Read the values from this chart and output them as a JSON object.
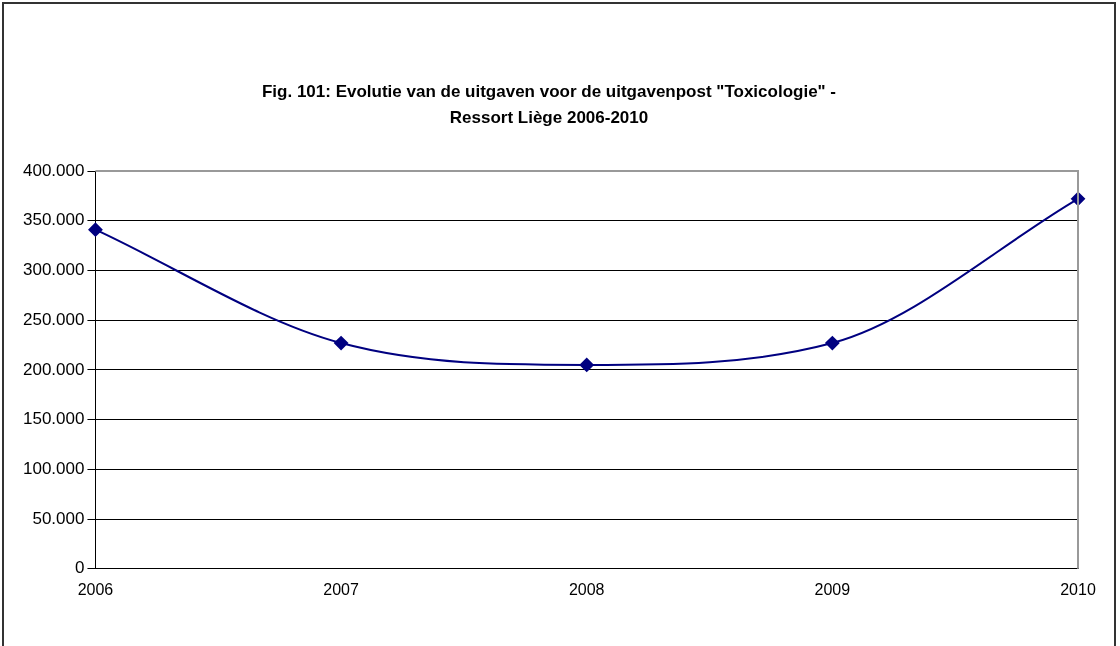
{
  "chart_data": {
    "type": "line",
    "title": "Fig. 101: Evolutie van de uitgaven voor de uitgavenpost \"Toxicologie\" -\nRessort Liège 2006-2010",
    "categories": [
      "2006",
      "2007",
      "2008",
      "2009",
      "2010"
    ],
    "series": [
      {
        "color": "#000080",
        "values": [
          341000,
          227000,
          205000,
          227000,
          372000
        ]
      }
    ],
    "ylim": [
      0,
      400000
    ],
    "yticks": [
      {
        "value": 0,
        "label": "0"
      },
      {
        "value": 50000,
        "label": "50.000"
      },
      {
        "value": 100000,
        "label": "100.000"
      },
      {
        "value": 150000,
        "label": "150.000"
      },
      {
        "value": 200000,
        "label": "200.000"
      },
      {
        "value": 250000,
        "label": "250.000"
      },
      {
        "value": 300000,
        "label": "300.000"
      },
      {
        "value": 350000,
        "label": "350.000"
      },
      {
        "value": 400000,
        "label": "400.000"
      }
    ],
    "grid": "y",
    "legend": false,
    "marker": "diamond",
    "line_style": "solid"
  }
}
